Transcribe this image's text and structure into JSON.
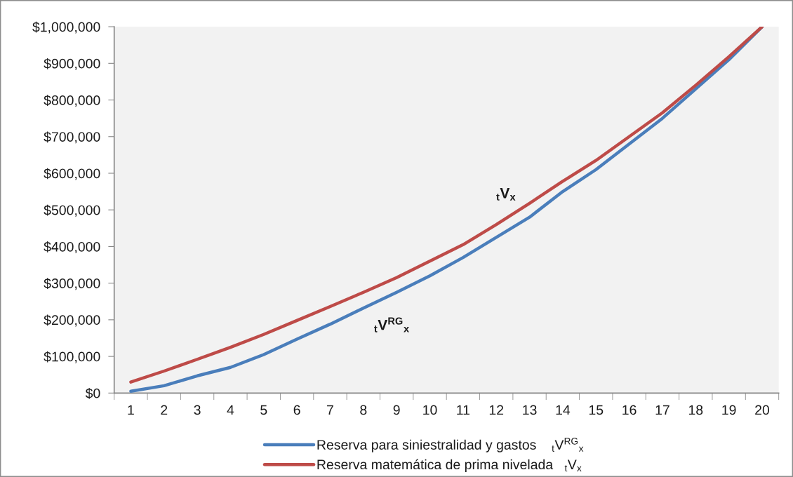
{
  "chart_data": {
    "type": "line",
    "categories": [
      "1",
      "2",
      "3",
      "4",
      "5",
      "6",
      "7",
      "8",
      "9",
      "10",
      "11",
      "12",
      "13",
      "14",
      "15",
      "16",
      "17",
      "18",
      "19",
      "20"
    ],
    "series": [
      {
        "name": "Reserva para siniestralidad y gastos    $_{t}$V$^{RG}$$_{x}$",
        "color": "#4a7ebb",
        "values": [
          5000,
          20000,
          47000,
          70000,
          105000,
          147000,
          188000,
          232000,
          275000,
          320000,
          370000,
          425000,
          480000,
          550000,
          610000,
          680000,
          750000,
          830000,
          910000,
          1000000
        ]
      },
      {
        "name": "Reserva matemática de prima nivelada   $_{t}$V$_{x}$",
        "color": "#be4b48",
        "values": [
          30000,
          60000,
          92000,
          125000,
          160000,
          198000,
          236000,
          275000,
          315000,
          360000,
          405000,
          460000,
          518000,
          578000,
          635000,
          700000,
          765000,
          840000,
          918000,
          1000000
        ]
      }
    ],
    "ylim": [
      0,
      1000000
    ],
    "yticks": [
      {
        "value": 0,
        "label": "$0"
      },
      {
        "value": 100000,
        "label": "$100,000"
      },
      {
        "value": 200000,
        "label": "$200,000"
      },
      {
        "value": 300000,
        "label": "$300,000"
      },
      {
        "value": 400000,
        "label": "$400,000"
      },
      {
        "value": 500000,
        "label": "$500,000"
      },
      {
        "value": 600000,
        "label": "$600,000"
      },
      {
        "value": 700000,
        "label": "$700,000"
      },
      {
        "value": 800000,
        "label": "$800,000"
      },
      {
        "value": 900000,
        "label": "$900,000"
      },
      {
        "value": 1000000,
        "label": "$1,000,000"
      }
    ],
    "annotations": [
      {
        "text": "$_{t}$V$_{x}$",
        "x": "12",
        "y": 460000
      },
      {
        "text": "$_{t}$V$^{RG}$$_{x}$",
        "x": "9",
        "y": 275000
      }
    ],
    "legend": "bottom",
    "marker": "none",
    "line_style": "solid"
  }
}
